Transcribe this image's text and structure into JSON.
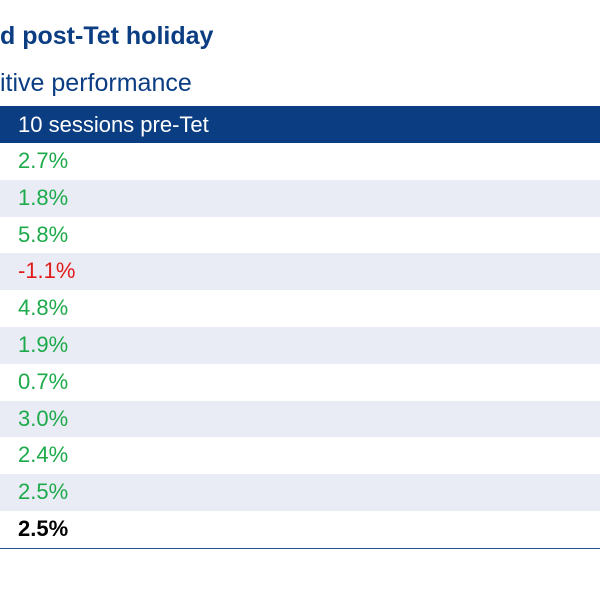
{
  "title": "d post-Tet holiday",
  "subtitle": "itive performance",
  "table": {
    "header": "10 sessions pre-Tet",
    "rows": [
      {
        "value": "2.7%",
        "kind": "pos"
      },
      {
        "value": "1.8%",
        "kind": "pos"
      },
      {
        "value": "5.8%",
        "kind": "pos"
      },
      {
        "value": "-1.1%",
        "kind": "neg"
      },
      {
        "value": "4.8%",
        "kind": "pos"
      },
      {
        "value": "1.9%",
        "kind": "pos"
      },
      {
        "value": "0.7%",
        "kind": "pos"
      },
      {
        "value": "3.0%",
        "kind": "pos"
      },
      {
        "value": "2.4%",
        "kind": "pos"
      },
      {
        "value": "2.5%",
        "kind": "pos"
      },
      {
        "value": "2.5%",
        "kind": "total"
      }
    ]
  },
  "colors": {
    "header_bg": "#0b3d82",
    "positive": "#1daa4b",
    "negative": "#e01b1b",
    "stripe": "#e9ecf5"
  }
}
